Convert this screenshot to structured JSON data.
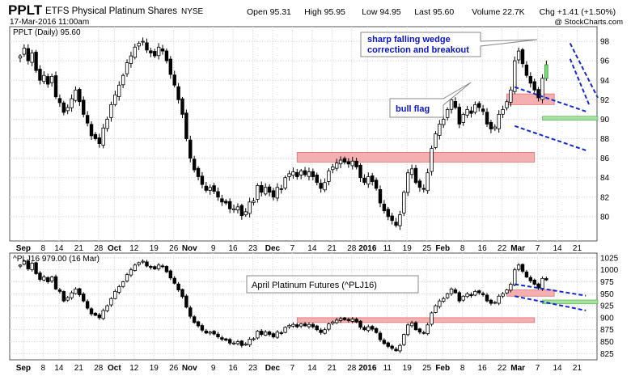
{
  "header": {
    "symbol": "PPLT",
    "name": "ETFS Physical Platinum Shares",
    "exchange": "NYSE",
    "date": "17-Mar-2016 11:00am",
    "copyright": "@ StockCharts.com",
    "quote": [
      {
        "label": "Open",
        "value": "95.31"
      },
      {
        "label": "High",
        "value": "95.95"
      },
      {
        "label": "Low",
        "value": "94.95"
      },
      {
        "label": "Last",
        "value": "95.60"
      },
      {
        "label": "Volume",
        "value": "22.7K"
      },
      {
        "label": "Chg",
        "value": "+1.41 (+1.50%)"
      }
    ]
  },
  "x_axis": {
    "labels": [
      "Sep",
      "8",
      "14",
      "21",
      "28",
      "Oct",
      "12",
      "19",
      "26",
      "Nov",
      "9",
      "16",
      "23",
      "Dec",
      "7",
      "14",
      "21",
      "28",
      "2016",
      "11",
      "19",
      "25",
      "Feb",
      "8",
      "16",
      "22",
      "Mar",
      "7",
      "14",
      "21"
    ],
    "bold": [
      "Sep",
      "Oct",
      "Nov",
      "Dec",
      "2016",
      "Feb",
      "Mar"
    ]
  },
  "chart_data": [
    {
      "type": "candlestick",
      "legend": "PPLT (Daily) 95.60",
      "ylim": [
        77.5,
        99.5
      ],
      "y_ticks": [
        80,
        82,
        84,
        86,
        88,
        90,
        92,
        94,
        96,
        98
      ],
      "x_range": [
        0,
        140
      ],
      "grid": true,
      "axis_side": "right",
      "close": [
        96.5,
        97.3,
        96.0,
        96.8,
        95.0,
        94.0,
        94.5,
        93.6,
        94.4,
        92.3,
        91.7,
        90.7,
        91.2,
        92.1,
        93.0,
        91.8,
        90.5,
        89.6,
        88.3,
        88.0,
        87.5,
        89.1,
        90.0,
        91.5,
        92.5,
        93.5,
        94.5,
        95.8,
        96.5,
        97.4,
        97.8,
        98.0,
        97.1,
        96.8,
        96.5,
        97.4,
        97.0,
        96.0,
        94.6,
        93.5,
        92.0,
        90.5,
        88.0,
        86.0,
        84.8,
        84.1,
        83.3,
        82.7,
        83.0,
        82.6,
        82.0,
        81.5,
        81.4,
        80.8,
        80.8,
        81.0,
        80.1,
        80.5,
        81.5,
        81.6,
        83.2,
        82.5,
        83.0,
        82.5,
        82.0,
        83.0,
        82.8,
        84.0,
        84.4,
        84.6,
        84.1,
        84.7,
        84.3,
        84.6,
        84.1,
        83.5,
        82.9,
        83.5,
        84.7,
        85.1,
        85.5,
        85.8,
        85.6,
        85.4,
        85.7,
        85.1,
        84.0,
        83.5,
        84.1,
        83.6,
        82.9,
        81.4,
        80.6,
        80.0,
        79.6,
        79.1,
        80.2,
        82.5,
        84.5,
        84.9,
        83.5,
        83.0,
        82.8,
        84.5,
        87.0,
        88.5,
        89.5,
        90.0,
        91.0,
        92.0,
        91.2,
        89.5,
        90.5,
        91.0,
        90.6,
        91.5,
        91.2,
        90.8,
        89.5,
        89.0,
        89.2,
        90.5,
        91.0,
        91.8,
        93.0,
        96.0,
        97.0,
        95.7,
        94.5,
        93.7,
        93.0,
        92.2,
        94.2,
        95.6
      ],
      "annotations": [
        {
          "text": "sharp falling wedge"
        },
        {
          "text": "correction and breakout"
        },
        {
          "text": "bull flag"
        }
      ],
      "zones": [
        {
          "kind": "resistance",
          "x": [
            70,
            130
          ],
          "y": [
            85.6,
            86.6
          ],
          "color": "#f4b0b0"
        },
        {
          "kind": "resistance",
          "x": [
            123,
            135
          ],
          "y": [
            91.5,
            92.6
          ],
          "color": "#f4b0b0"
        },
        {
          "kind": "support",
          "x": [
            132,
            146
          ],
          "y": [
            89.9,
            90.3
          ],
          "color": "#a8e0a0"
        }
      ],
      "trendlines": [
        {
          "from": [
            125,
            93.3
          ],
          "to": [
            143,
            90.8
          ]
        },
        {
          "from": [
            125,
            89.3
          ],
          "to": [
            143,
            86.8
          ]
        },
        {
          "from": [
            139,
            97.8
          ],
          "to": [
            146,
            92.2
          ]
        },
        {
          "from": [
            139,
            96.2
          ],
          "to": [
            144,
            91.3
          ]
        }
      ]
    },
    {
      "type": "candlestick",
      "legend": "^PLJ16 979.00 (16 Mar)",
      "ylim": [
        812,
        1035
      ],
      "y_ticks": [
        825,
        850,
        875,
        900,
        925,
        950,
        975,
        1000,
        1025
      ],
      "x_range": [
        0,
        140
      ],
      "grid": true,
      "axis_side": "right",
      "close": [
        1010,
        1018,
        1002,
        1014,
        992,
        980,
        985,
        975,
        985,
        960,
        955,
        935,
        942,
        952,
        960,
        948,
        935,
        920,
        908,
        905,
        900,
        915,
        925,
        940,
        955,
        965,
        975,
        990,
        1000,
        1010,
        1015,
        1018,
        1008,
        1005,
        1002,
        1010,
        1007,
        996,
        983,
        972,
        958,
        944,
        922,
        903,
        890,
        883,
        874,
        868,
        870,
        866,
        860,
        855,
        853,
        847,
        847,
        850,
        842,
        845,
        855,
        856,
        872,
        865,
        870,
        865,
        860,
        870,
        868,
        880,
        884,
        886,
        881,
        887,
        883,
        886,
        881,
        875,
        869,
        875,
        887,
        891,
        895,
        898,
        896,
        894,
        897,
        891,
        880,
        875,
        881,
        876,
        869,
        854,
        846,
        840,
        836,
        831,
        842,
        865,
        885,
        889,
        875,
        870,
        868,
        885,
        910,
        925,
        935,
        940,
        950,
        960,
        952,
        935,
        945,
        950,
        946,
        955,
        952,
        948,
        935,
        930,
        932,
        945,
        950,
        958,
        970,
        1000,
        1010,
        997,
        985,
        977,
        970,
        962,
        982,
        979
      ],
      "annotations": [
        {
          "text": "April Platinum Futures (^PLJ16)"
        }
      ],
      "zones": [
        {
          "kind": "resistance",
          "x": [
            70,
            130
          ],
          "y": [
            890,
            900
          ],
          "color": "#f4b0b0"
        },
        {
          "kind": "resistance",
          "x": [
            123,
            135
          ],
          "y": [
            945,
            958
          ],
          "color": "#f4b0b0"
        },
        {
          "kind": "support",
          "x": [
            132,
            146
          ],
          "y": [
            929,
            937
          ],
          "color": "#a8e0a0"
        }
      ],
      "trendlines": [
        {
          "from": [
            125,
            970
          ],
          "to": [
            143,
            946
          ]
        },
        {
          "from": [
            125,
            945
          ],
          "to": [
            143,
            915
          ]
        }
      ]
    }
  ]
}
